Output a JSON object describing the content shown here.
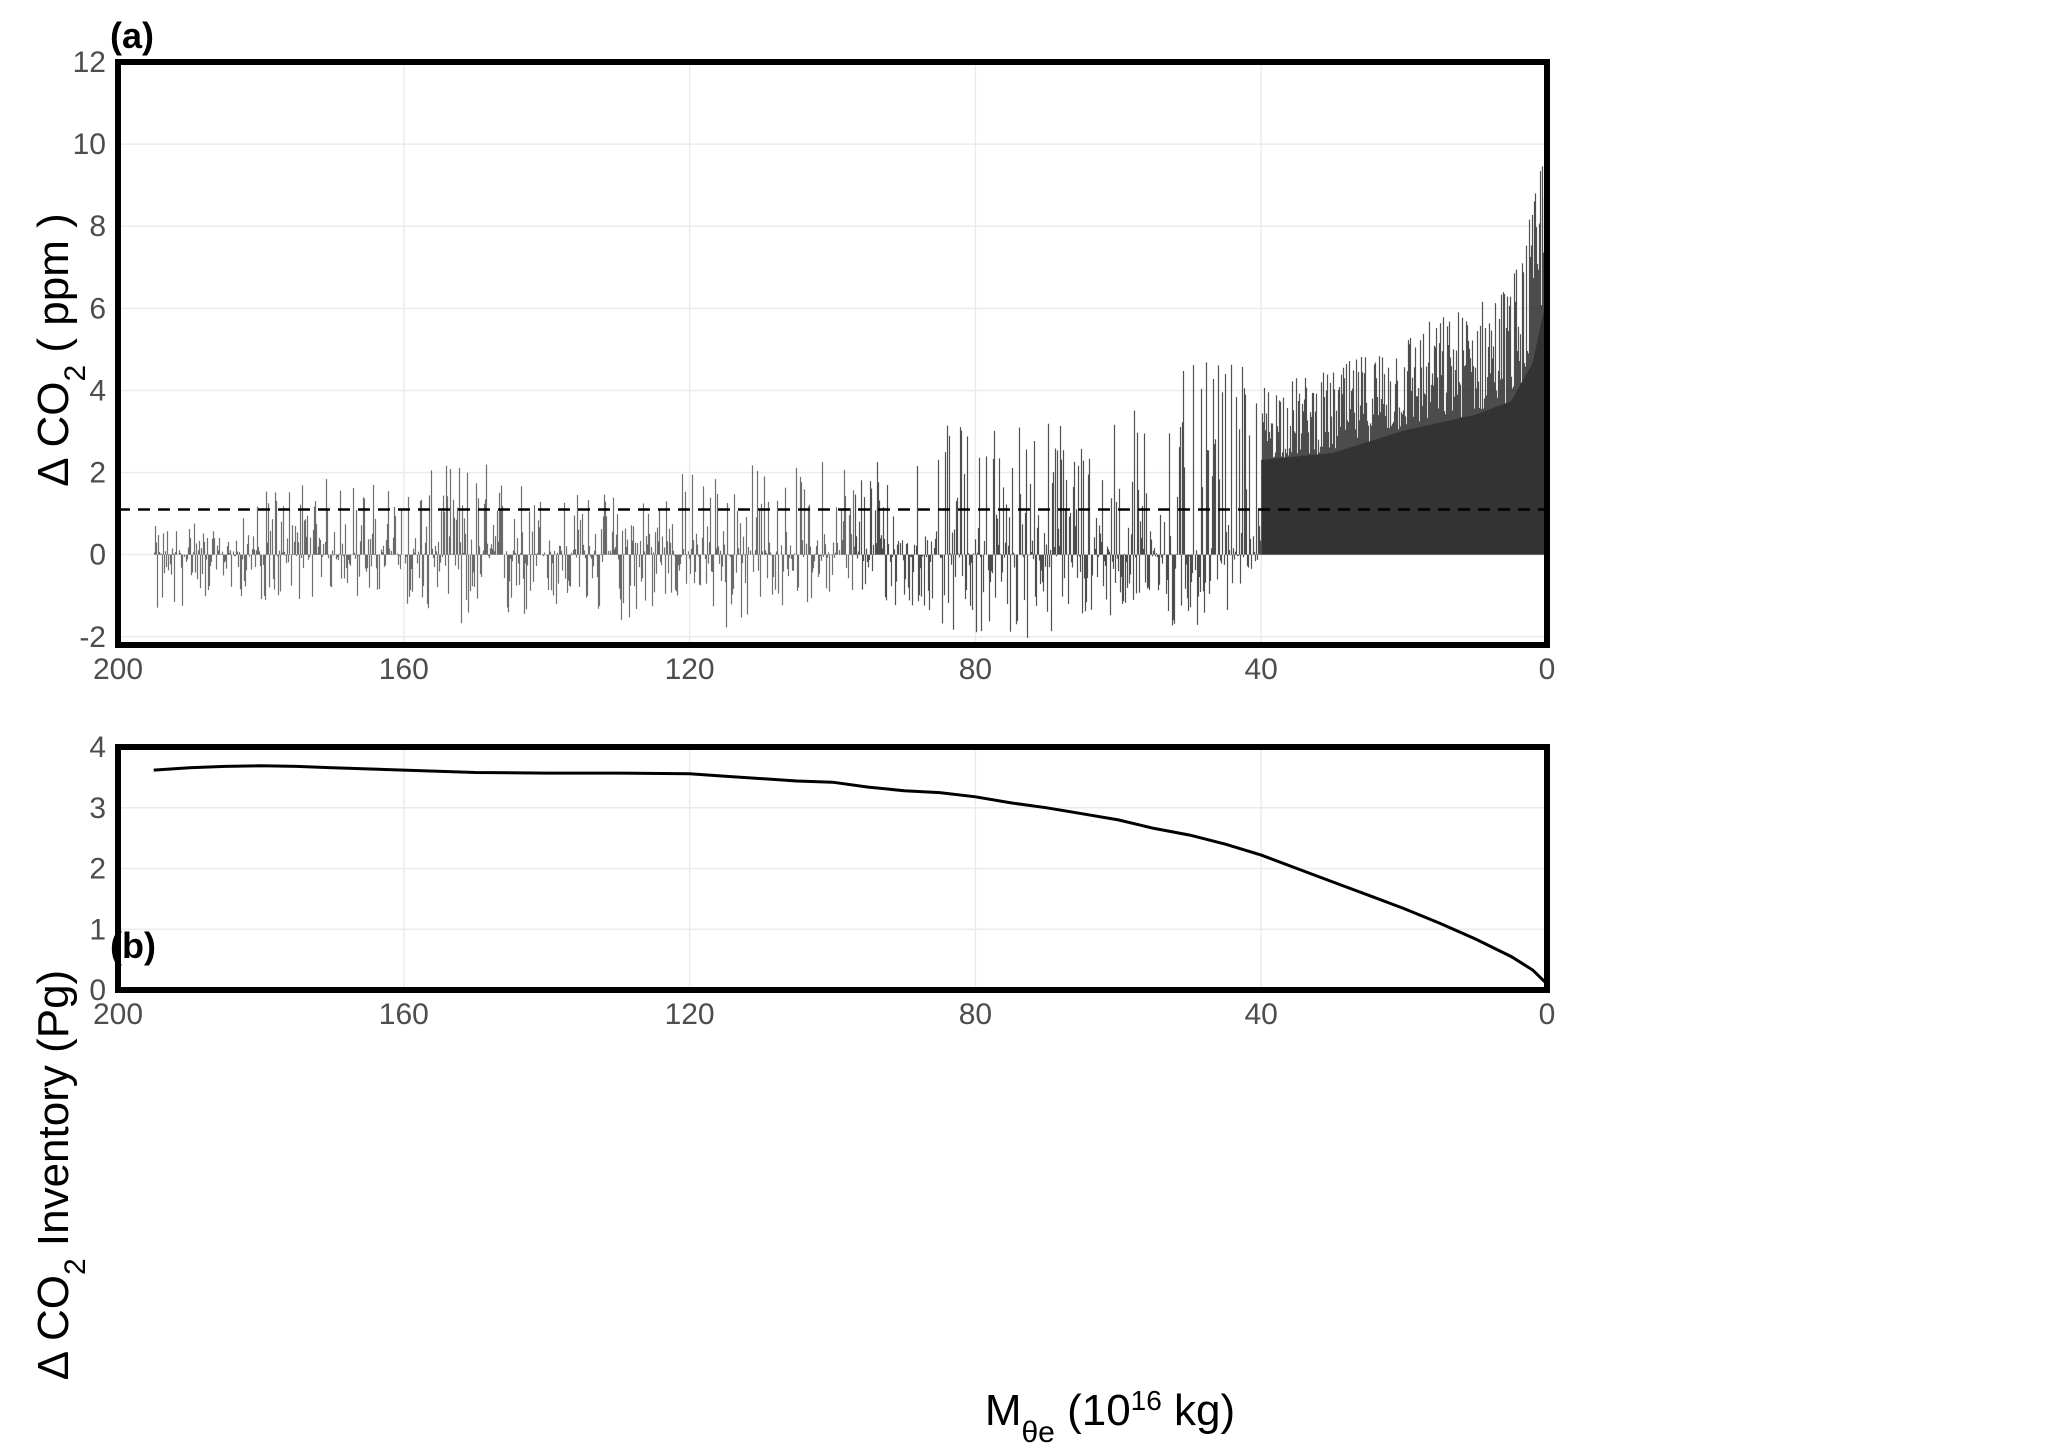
{
  "chart_data": [
    {
      "panel_label": "(a)",
      "type": "bar",
      "ylabel_main": "Δ CO",
      "ylabel_sub": "2",
      "ylabel_tail": " ( ppm )",
      "xlim": [
        200,
        0
      ],
      "ylim": [
        -2.2,
        12
      ],
      "xticks": [
        200,
        160,
        120,
        80,
        40,
        0
      ],
      "yticks": [
        -2,
        0,
        2,
        4,
        6,
        8,
        10,
        12
      ],
      "grid": true,
      "bar_color": "#333333",
      "reference_line": {
        "y": 1.1,
        "style": "dashed",
        "color": "#000000"
      },
      "data_range_x": [
        195,
        0
      ],
      "envelope": [
        {
          "x": 195,
          "min": -1.6,
          "max": 0.7
        },
        {
          "x": 190,
          "min": -1.3,
          "max": 0.9
        },
        {
          "x": 185,
          "min": -0.9,
          "max": 0.4
        },
        {
          "x": 180,
          "min": -1.2,
          "max": 1.5
        },
        {
          "x": 175,
          "min": -1.1,
          "max": 2.0
        },
        {
          "x": 170,
          "min": -1.0,
          "max": 1.9
        },
        {
          "x": 160,
          "min": -1.2,
          "max": 1.8
        },
        {
          "x": 150,
          "min": -2.2,
          "max": 2.5
        },
        {
          "x": 140,
          "min": -1.4,
          "max": 1.6
        },
        {
          "x": 130,
          "min": -1.7,
          "max": 1.6
        },
        {
          "x": 120,
          "min": -1.0,
          "max": 2.2
        },
        {
          "x": 115,
          "min": -1.9,
          "max": 2.4
        },
        {
          "x": 105,
          "min": -1.2,
          "max": 2.2
        },
        {
          "x": 97,
          "min": -1.0,
          "max": 2.8
        },
        {
          "x": 90,
          "min": -1.5,
          "max": 2.8
        },
        {
          "x": 80,
          "min": -2.0,
          "max": 3.5
        },
        {
          "x": 70,
          "min": -2.1,
          "max": 3.6
        },
        {
          "x": 60,
          "min": -1.4,
          "max": 3.6
        },
        {
          "x": 52,
          "min": -2.2,
          "max": 4.5
        },
        {
          "x": 45,
          "min": -1.5,
          "max": 4.9
        },
        {
          "x": 40,
          "min": 0,
          "max": 4.2
        },
        {
          "x": 30,
          "min": 0,
          "max": 4.5
        },
        {
          "x": 20,
          "min": 0,
          "max": 5.5
        },
        {
          "x": 10,
          "min": 0,
          "max": 6.2
        },
        {
          "x": 5,
          "min": 0,
          "max": 6.8
        },
        {
          "x": 2,
          "min": 0,
          "max": 8.5
        },
        {
          "x": 0.5,
          "min": 0,
          "max": 10.7
        }
      ]
    },
    {
      "panel_label": "(b)",
      "type": "line",
      "ylabel_main": "Δ CO",
      "ylabel_sub": "2",
      "ylabel_tail": " Inventory (Pg)",
      "xlabel_main": "M",
      "xlabel_sub": "θe",
      "xlabel_mid": " (10",
      "xlabel_sup": "16",
      "xlabel_tail": " kg)",
      "xlim": [
        200,
        0
      ],
      "ylim": [
        0,
        4
      ],
      "xticks": [
        200,
        160,
        120,
        80,
        40,
        0
      ],
      "yticks": [
        0,
        1,
        2,
        3,
        4
      ],
      "grid": true,
      "line_color": "#000000",
      "series": [
        {
          "x": [
            195,
            190,
            185,
            180,
            175,
            170,
            160,
            150,
            140,
            130,
            120,
            115,
            110,
            105,
            100,
            95,
            90,
            85,
            80,
            75,
            70,
            65,
            60,
            55,
            50,
            45,
            40,
            35,
            30,
            25,
            20,
            15,
            10,
            5,
            2,
            0
          ],
          "y": [
            3.62,
            3.66,
            3.68,
            3.69,
            3.68,
            3.66,
            3.62,
            3.58,
            3.57,
            3.57,
            3.56,
            3.52,
            3.48,
            3.44,
            3.42,
            3.34,
            3.28,
            3.25,
            3.18,
            3.08,
            3.0,
            2.9,
            2.8,
            2.66,
            2.55,
            2.4,
            2.22,
            2.0,
            1.78,
            1.56,
            1.34,
            1.1,
            0.84,
            0.55,
            0.33,
            0.1
          ]
        }
      ]
    }
  ]
}
